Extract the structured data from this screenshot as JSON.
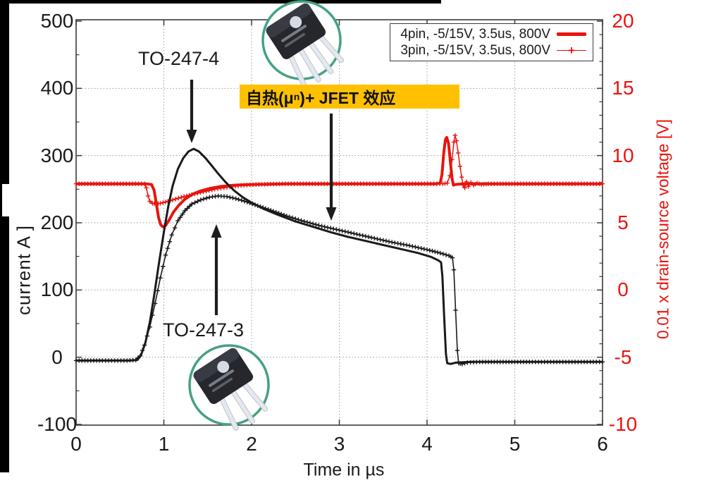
{
  "chart_data": {
    "type": "line",
    "xlabel": "Time in µs",
    "ylabel_left": "current A ]",
    "ylabel_right": "0.01 x drain-source voltage [V]",
    "xlim": [
      0,
      6
    ],
    "ylim_left": [
      -100,
      500
    ],
    "ylim_right": [
      -10,
      20
    ],
    "xticks": [
      0,
      1,
      2,
      3,
      4,
      5,
      6
    ],
    "yticks_left": [
      500,
      400,
      300,
      200,
      100,
      0,
      -100
    ],
    "yticks_right": [
      20,
      15,
      10,
      5,
      0,
      -5,
      -10
    ],
    "minor_tick_steps": {
      "y_left": 50,
      "y_right": 1
    },
    "grid": true,
    "colors": {
      "current": "#1a1a1a",
      "voltage": "#e8140e"
    },
    "legend": {
      "position": "top-right",
      "entries": [
        {
          "label": "4pin, -5/15V, 3.5us, 800V",
          "style": "solid-line",
          "color": "#e8140e"
        },
        {
          "label": "3pin, -5/15V, 3.5us, 800V",
          "style": "plus-marker",
          "color": "#e8140e"
        }
      ]
    },
    "series": [
      {
        "name": "voltage_4pin",
        "axis": "right",
        "color": "#e8140e",
        "style": "solid",
        "width": 4,
        "points": [
          [
            0,
            7.9
          ],
          [
            0.4,
            7.9
          ],
          [
            0.8,
            7.9
          ],
          [
            0.86,
            7.85
          ],
          [
            0.89,
            7.4
          ],
          [
            0.915,
            6.4
          ],
          [
            0.94,
            5.4
          ],
          [
            0.965,
            4.85
          ],
          [
            0.99,
            4.7
          ],
          [
            1.02,
            4.8
          ],
          [
            1.06,
            5.2
          ],
          [
            1.11,
            5.8
          ],
          [
            1.17,
            6.3
          ],
          [
            1.24,
            6.75
          ],
          [
            1.32,
            7.1
          ],
          [
            1.41,
            7.35
          ],
          [
            1.52,
            7.55
          ],
          [
            1.65,
            7.7
          ],
          [
            1.8,
            7.8
          ],
          [
            2.0,
            7.85
          ],
          [
            2.4,
            7.9
          ],
          [
            3.0,
            7.9
          ],
          [
            4.1,
            7.9
          ],
          [
            4.15,
            7.95
          ],
          [
            4.17,
            8.6
          ],
          [
            4.19,
            10.2
          ],
          [
            4.21,
            11.2
          ],
          [
            4.225,
            11.35
          ],
          [
            4.245,
            10.9
          ],
          [
            4.265,
            9.6
          ],
          [
            4.285,
            8.3
          ],
          [
            4.3,
            7.8
          ],
          [
            4.32,
            7.85
          ],
          [
            4.4,
            7.9
          ],
          [
            5.0,
            7.9
          ],
          [
            6,
            7.9
          ]
        ]
      },
      {
        "name": "voltage_3pin",
        "axis": "right",
        "color": "#e8140e",
        "style": "plus",
        "width": 1.5,
        "points": [
          [
            0,
            7.9
          ],
          [
            0.4,
            7.9
          ],
          [
            0.78,
            7.9
          ],
          [
            0.8,
            7.6
          ],
          [
            0.82,
            7.0
          ],
          [
            0.84,
            6.6
          ],
          [
            0.87,
            6.45
          ],
          [
            0.91,
            6.4
          ],
          [
            0.96,
            6.45
          ],
          [
            1.02,
            6.55
          ],
          [
            1.1,
            6.7
          ],
          [
            1.2,
            6.9
          ],
          [
            1.32,
            7.1
          ],
          [
            1.45,
            7.3
          ],
          [
            1.58,
            7.5
          ],
          [
            1.72,
            7.65
          ],
          [
            1.88,
            7.78
          ],
          [
            2.05,
            7.85
          ],
          [
            2.35,
            7.9
          ],
          [
            3.0,
            7.9
          ],
          [
            4.18,
            7.9
          ],
          [
            4.23,
            7.95
          ],
          [
            4.26,
            8.5
          ],
          [
            4.285,
            9.7
          ],
          [
            4.305,
            11.0
          ],
          [
            4.32,
            11.5
          ],
          [
            4.335,
            11.1
          ],
          [
            4.355,
            10.2
          ],
          [
            4.375,
            9.2
          ],
          [
            4.395,
            8.4
          ],
          [
            4.41,
            7.8
          ],
          [
            4.43,
            7.6
          ],
          [
            4.45,
            8.05
          ],
          [
            4.47,
            7.7
          ],
          [
            4.5,
            8.0
          ],
          [
            4.53,
            7.8
          ],
          [
            4.57,
            7.95
          ],
          [
            4.62,
            7.85
          ],
          [
            4.7,
            7.9
          ],
          [
            5.2,
            7.9
          ],
          [
            6,
            7.9
          ]
        ]
      },
      {
        "name": "current_4pin",
        "axis": "left",
        "color": "#1a1a1a",
        "style": "solid",
        "width": 3,
        "points": [
          [
            0,
            -5
          ],
          [
            0.3,
            -5
          ],
          [
            0.6,
            -5
          ],
          [
            0.7,
            -4
          ],
          [
            0.74,
            3
          ],
          [
            0.79,
            22
          ],
          [
            0.84,
            52
          ],
          [
            0.89,
            92
          ],
          [
            0.94,
            136
          ],
          [
            1.0,
            186
          ],
          [
            1.05,
            224
          ],
          [
            1.1,
            255
          ],
          [
            1.16,
            280
          ],
          [
            1.22,
            296
          ],
          [
            1.28,
            306
          ],
          [
            1.34,
            310
          ],
          [
            1.4,
            306
          ],
          [
            1.47,
            297
          ],
          [
            1.54,
            286
          ],
          [
            1.62,
            273
          ],
          [
            1.7,
            261
          ],
          [
            1.8,
            248
          ],
          [
            1.9,
            238
          ],
          [
            2.0,
            230
          ],
          [
            2.15,
            220
          ],
          [
            2.3,
            212
          ],
          [
            2.5,
            202
          ],
          [
            2.7,
            194
          ],
          [
            2.9,
            186
          ],
          [
            3.1,
            179
          ],
          [
            3.3,
            173
          ],
          [
            3.5,
            167
          ],
          [
            3.7,
            161
          ],
          [
            3.9,
            155
          ],
          [
            4.05,
            149
          ],
          [
            4.13,
            144
          ],
          [
            4.16,
            141
          ],
          [
            4.175,
            120
          ],
          [
            4.195,
            60
          ],
          [
            4.215,
            5
          ],
          [
            4.23,
            -9
          ],
          [
            4.27,
            -10
          ],
          [
            4.33,
            -8
          ],
          [
            4.5,
            -7
          ],
          [
            5.0,
            -7
          ],
          [
            6,
            -7
          ]
        ]
      },
      {
        "name": "current_3pin",
        "axis": "left",
        "color": "#1a1a1a",
        "style": "plus",
        "width": 1.6,
        "points": [
          [
            0,
            -5
          ],
          [
            0.3,
            -5
          ],
          [
            0.58,
            -5
          ],
          [
            0.68,
            -4
          ],
          [
            0.73,
            2
          ],
          [
            0.78,
            18
          ],
          [
            0.84,
            45
          ],
          [
            0.9,
            80
          ],
          [
            0.96,
            118
          ],
          [
            1.02,
            152
          ],
          [
            1.09,
            182
          ],
          [
            1.16,
            203
          ],
          [
            1.24,
            218
          ],
          [
            1.32,
            228
          ],
          [
            1.42,
            234
          ],
          [
            1.52,
            238
          ],
          [
            1.62,
            240
          ],
          [
            1.72,
            239
          ],
          [
            1.82,
            236
          ],
          [
            1.95,
            231
          ],
          [
            2.1,
            224
          ],
          [
            2.25,
            217
          ],
          [
            2.4,
            210
          ],
          [
            2.6,
            202
          ],
          [
            2.8,
            195
          ],
          [
            3.0,
            189
          ],
          [
            3.2,
            183
          ],
          [
            3.4,
            177
          ],
          [
            3.6,
            171
          ],
          [
            3.8,
            166
          ],
          [
            4.0,
            160
          ],
          [
            4.15,
            155
          ],
          [
            4.25,
            151
          ],
          [
            4.29,
            148
          ],
          [
            4.305,
            130
          ],
          [
            4.325,
            70
          ],
          [
            4.345,
            10
          ],
          [
            4.36,
            -9
          ],
          [
            4.4,
            -10
          ],
          [
            4.46,
            -8
          ],
          [
            4.6,
            -7
          ],
          [
            5.2,
            -7
          ],
          [
            6,
            -7
          ]
        ]
      }
    ]
  },
  "annotations": {
    "to_247_4": "TO-247-4",
    "to_247_3": "TO-247-3",
    "jfet_prefix": "自热(μ",
    "jfet_sub": "n",
    "jfet_suffix": ")+ JFET 效应",
    "highlight_color": "#FFC000"
  }
}
